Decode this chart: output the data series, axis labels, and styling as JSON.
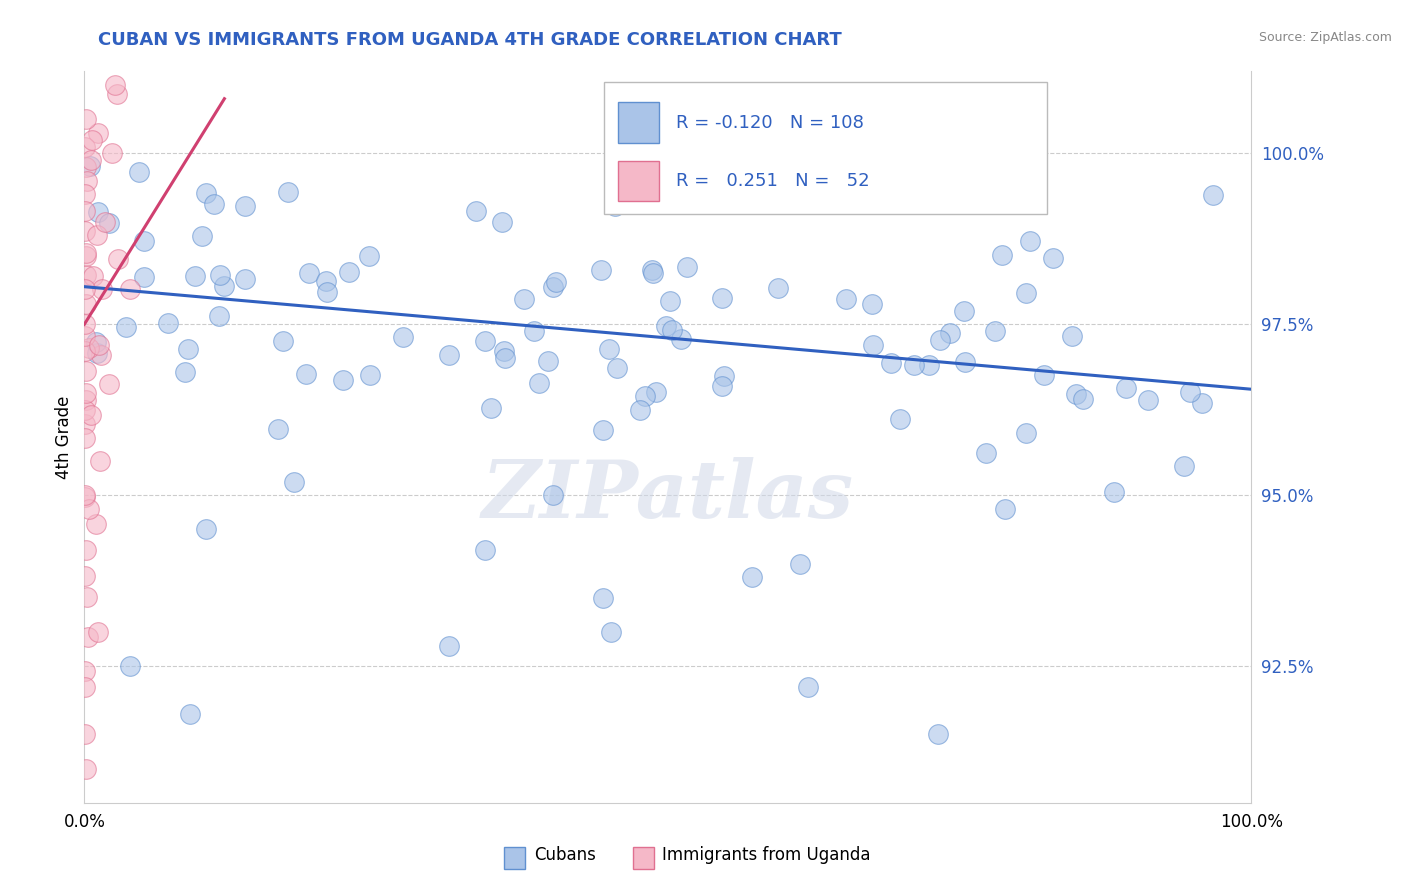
{
  "title": "CUBAN VS IMMIGRANTS FROM UGANDA 4TH GRADE CORRELATION CHART",
  "source": "Source: ZipAtlas.com",
  "ylabel": "4th Grade",
  "y_ticks": [
    92.5,
    95.0,
    97.5,
    100.0
  ],
  "y_tick_labels": [
    "92.5%",
    "95.0%",
    "97.5%",
    "100.0%"
  ],
  "x_min": 0.0,
  "x_max": 100.0,
  "y_min": 90.5,
  "y_max": 101.2,
  "legend_R_blue": "-0.120",
  "legend_N_blue": "108",
  "legend_R_pink": "0.251",
  "legend_N_pink": "52",
  "blue_color": "#aac4e8",
  "blue_edge": "#6090d0",
  "pink_color": "#f5b8c8",
  "pink_edge": "#e07090",
  "blue_line_color": "#3060c0",
  "pink_line_color": "#d04070",
  "title_color": "#3060c0",
  "watermark": "ZIPatlas",
  "blue_line_x0": 0,
  "blue_line_x1": 100,
  "blue_line_y0": 98.05,
  "blue_line_y1": 96.55,
  "pink_line_x0": 0,
  "pink_line_x1": 12,
  "pink_line_y0": 97.5,
  "pink_line_y1": 100.8
}
